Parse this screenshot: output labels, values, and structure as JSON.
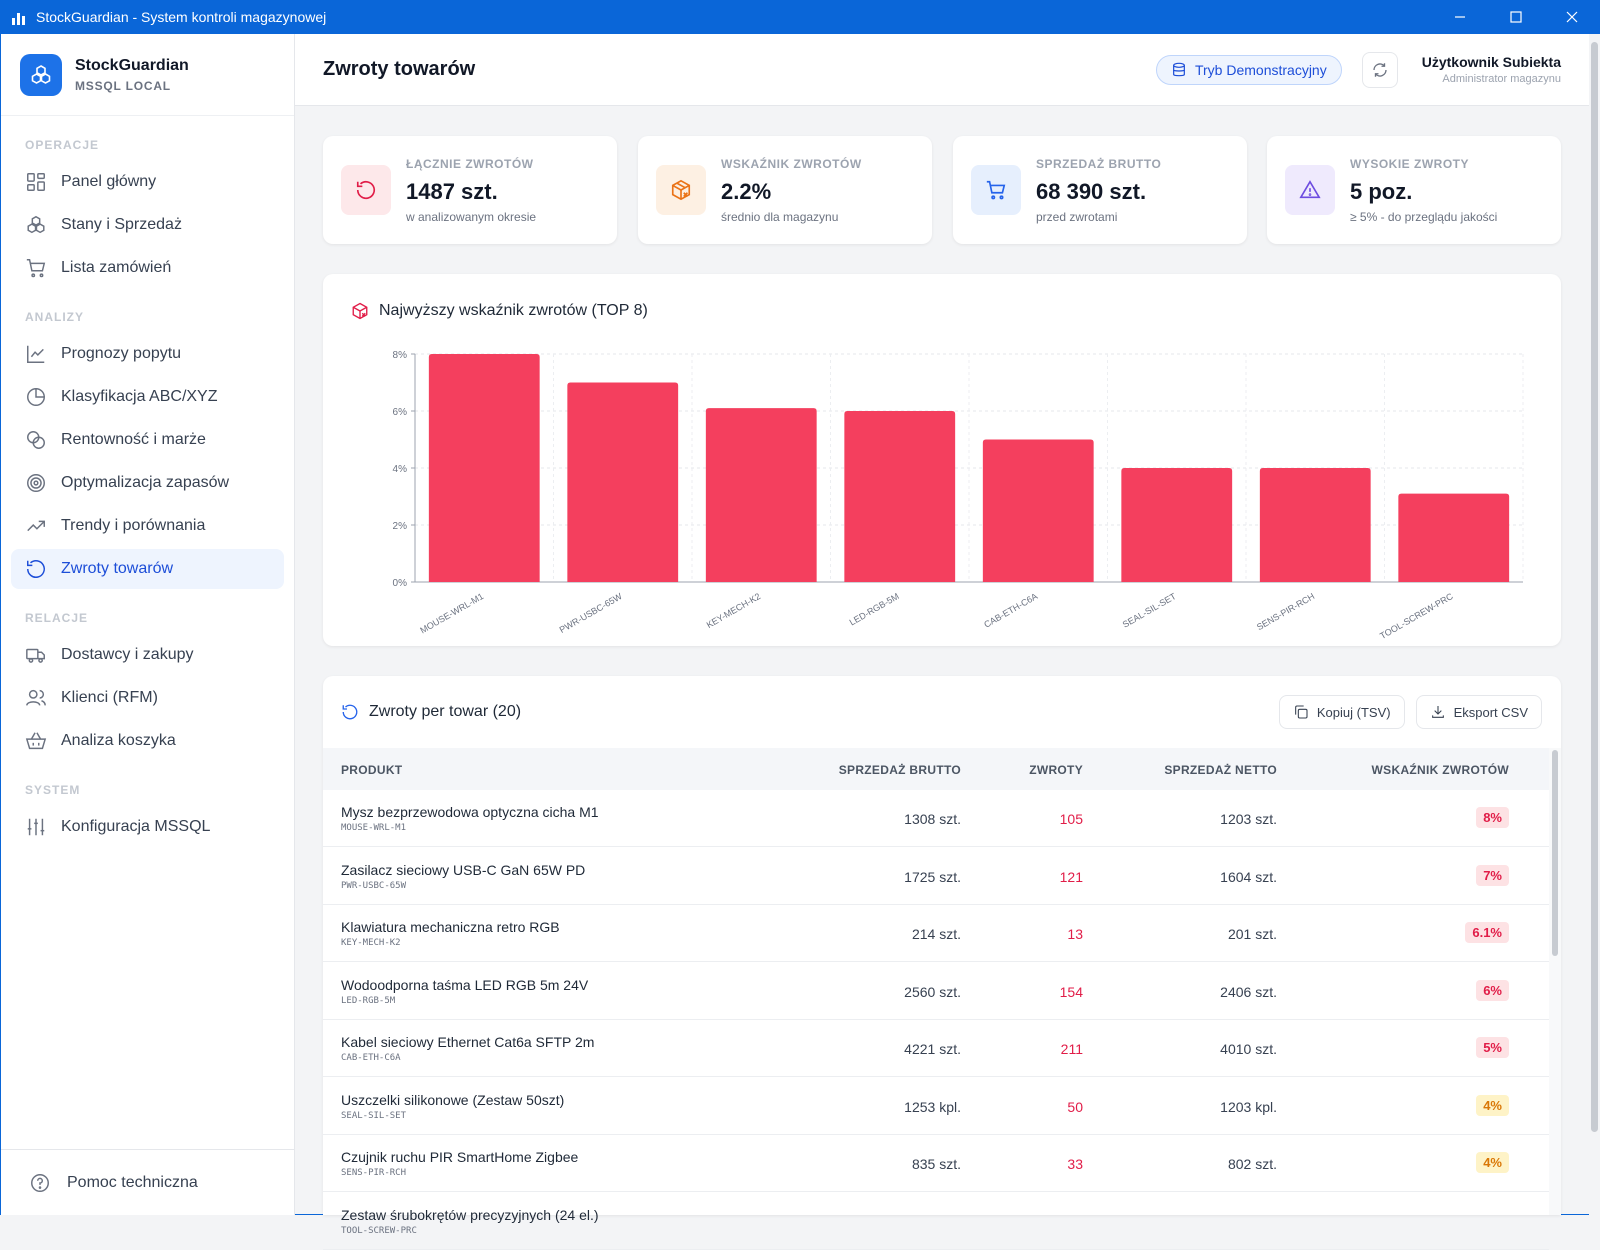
{
  "window": {
    "title": "StockGuardian - System kontroli magazynowej"
  },
  "sidebar": {
    "brand_name": "StockGuardian",
    "brand_sub": "MSSQL LOCAL",
    "sections": [
      {
        "title": "OPERACJE",
        "items": [
          {
            "label": "Panel główny",
            "icon": "grid-icon"
          },
          {
            "label": "Stany i Sprzedaż",
            "icon": "boxes-icon"
          },
          {
            "label": "Lista zamówień",
            "icon": "cart-icon"
          }
        ]
      },
      {
        "title": "ANALIZY",
        "items": [
          {
            "label": "Prognozy popytu",
            "icon": "line-chart-icon"
          },
          {
            "label": "Klasyfikacja ABC/XYZ",
            "icon": "pie-icon"
          },
          {
            "label": "Rentowność i marże",
            "icon": "coins-icon"
          },
          {
            "label": "Optymalizacja zapasów",
            "icon": "target-icon"
          },
          {
            "label": "Trendy i porównania",
            "icon": "trend-icon"
          },
          {
            "label": "Zwroty towarów",
            "icon": "return-icon",
            "active": true
          }
        ]
      },
      {
        "title": "RELACJE",
        "items": [
          {
            "label": "Dostawcy i zakupy",
            "icon": "truck-icon"
          },
          {
            "label": "Klienci (RFM)",
            "icon": "users-icon"
          },
          {
            "label": "Analiza koszyka",
            "icon": "basket-icon"
          }
        ]
      },
      {
        "title": "SYSTEM",
        "items": [
          {
            "label": "Konfiguracja MSSQL",
            "icon": "sliders-icon"
          }
        ]
      }
    ],
    "help_label": "Pomoc techniczna"
  },
  "header": {
    "title": "Zwroty towarów",
    "demo_label": "Tryb Demonstracyjny",
    "user_name": "Użytkownik Subiekta",
    "user_role": "Administrator magazynu"
  },
  "kpis": [
    {
      "label": "ŁĄCZNIE ZWROTÓW",
      "value": "1487 szt.",
      "note": "w analizowanym okresie",
      "icon": "return-icon",
      "color": "#e11d48",
      "bg": "#fde8ea"
    },
    {
      "label": "WSKAŹNIK ZWROTÓW",
      "value": "2.2%",
      "note": "średnio dla magazynu",
      "icon": "package-x-icon",
      "color": "#ea7317",
      "bg": "#fdf0e3"
    },
    {
      "label": "SPRZEDAŻ BRUTTO",
      "value": "68 390 szt.",
      "note": "przed zwrotami",
      "icon": "cart-icon",
      "color": "#2563eb",
      "bg": "#e6effd"
    },
    {
      "label": "WYSOKIE ZWROTY",
      "value": "5 poz.",
      "note": "≥ 5% - do przeglądu jakości",
      "icon": "warning-icon",
      "color": "#6d4ce0",
      "bg": "#efeafd"
    }
  ],
  "chart_title": "Najwyższy wskaźnik zwrotów (TOP 8)",
  "chart_data": {
    "type": "bar",
    "title": "Najwyższy wskaźnik zwrotów (TOP 8)",
    "categories": [
      "MOUSE-WRL-M1",
      "PWR-USBC-65W",
      "KEY-MECH-K2",
      "LED-RGB-5M",
      "CAB-ETH-C6A",
      "SEAL-SIL-SET",
      "SENS-PIR-RCH",
      "TOOL-SCREW-PRC"
    ],
    "values": [
      8.0,
      7.0,
      6.1,
      6.0,
      5.0,
      4.0,
      4.0,
      3.1
    ],
    "ylim": [
      0,
      8
    ],
    "yticks": [
      "0%",
      "2%",
      "4%",
      "6%",
      "8%"
    ],
    "bar_color": "#f43f5e",
    "grid": true
  },
  "table": {
    "title": "Zwroty per towar (20)",
    "copy_label": "Kopiuj (TSV)",
    "export_label": "Eksport CSV",
    "columns": [
      "PRODUKT",
      "SPRZEDAŻ BRUTTO",
      "ZWROTY",
      "SPRZEDAŻ NETTO",
      "WSKAŹNIK ZWROTÓW"
    ],
    "rows": [
      {
        "name": "Mysz bezprzewodowa optyczna cicha M1",
        "sku": "MOUSE-WRL-M1",
        "gross": "1308 szt.",
        "returns": "105",
        "net": "1203 szt.",
        "rate": "8%",
        "level": "high"
      },
      {
        "name": "Zasilacz sieciowy USB-C GaN 65W PD",
        "sku": "PWR-USBC-65W",
        "gross": "1725 szt.",
        "returns": "121",
        "net": "1604 szt.",
        "rate": "7%",
        "level": "high"
      },
      {
        "name": "Klawiatura mechaniczna retro RGB",
        "sku": "KEY-MECH-K2",
        "gross": "214 szt.",
        "returns": "13",
        "net": "201 szt.",
        "rate": "6.1%",
        "level": "high"
      },
      {
        "name": "Wodoodporna taśma LED RGB 5m 24V",
        "sku": "LED-RGB-5M",
        "gross": "2560 szt.",
        "returns": "154",
        "net": "2406 szt.",
        "rate": "6%",
        "level": "high"
      },
      {
        "name": "Kabel sieciowy Ethernet Cat6a SFTP 2m",
        "sku": "CAB-ETH-C6A",
        "gross": "4221 szt.",
        "returns": "211",
        "net": "4010 szt.",
        "rate": "5%",
        "level": "high"
      },
      {
        "name": "Uszczelki silikonowe (Zestaw 50szt)",
        "sku": "SEAL-SIL-SET",
        "gross": "1253 kpl.",
        "returns": "50",
        "net": "1203 kpl.",
        "rate": "4%",
        "level": "mid"
      },
      {
        "name": "Czujnik ruchu PIR SmartHome Zigbee",
        "sku": "SENS-PIR-RCH",
        "gross": "835 szt.",
        "returns": "33",
        "net": "802 szt.",
        "rate": "4%",
        "level": "mid"
      },
      {
        "name": "Zestaw śrubokrętów precyzyjnych (24 el.)",
        "sku": "TOOL-SCREW-PRC",
        "gross": "",
        "returns": "",
        "net": "",
        "rate": "",
        "level": "mid"
      }
    ]
  }
}
